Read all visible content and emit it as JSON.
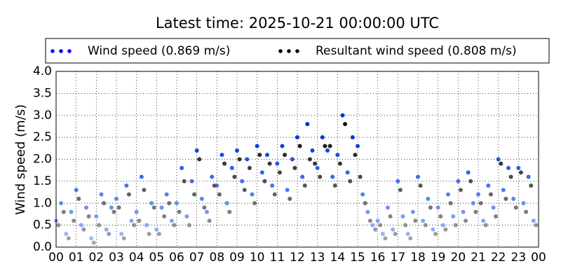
{
  "chart_data": {
    "type": "scatter",
    "title": "Latest time: 2025-10-21 00:00:00 UTC",
    "y_label": "Wind speed (m/s)",
    "xlim": [
      0,
      24
    ],
    "ylim": [
      0,
      4
    ],
    "xticks": [
      {
        "value": 0,
        "label": "00"
      },
      {
        "value": 1,
        "label": "01"
      },
      {
        "value": 2,
        "label": "02"
      },
      {
        "value": 3,
        "label": "03"
      },
      {
        "value": 4,
        "label": "04"
      },
      {
        "value": 5,
        "label": "05"
      },
      {
        "value": 6,
        "label": "06"
      },
      {
        "value": 7,
        "label": "07"
      },
      {
        "value": 8,
        "label": "08"
      },
      {
        "value": 9,
        "label": "09"
      },
      {
        "value": 10,
        "label": "10"
      },
      {
        "value": 11,
        "label": "11"
      },
      {
        "value": 12,
        "label": "12"
      },
      {
        "value": 13,
        "label": "13"
      },
      {
        "value": 14,
        "label": "14"
      },
      {
        "value": 15,
        "label": "15"
      },
      {
        "value": 16,
        "label": "16"
      },
      {
        "value": 17,
        "label": "17"
      },
      {
        "value": 18,
        "label": "18"
      },
      {
        "value": 19,
        "label": "19"
      },
      {
        "value": 20,
        "label": "20"
      },
      {
        "value": 21,
        "label": "21"
      },
      {
        "value": 22,
        "label": "22"
      },
      {
        "value": 23,
        "label": "23"
      },
      {
        "value": 24,
        "label": "00"
      }
    ],
    "yticks": [
      {
        "value": 0,
        "label": "0.0"
      },
      0.5,
      {
        "value": 1,
        "label": "1.0"
      },
      1.5,
      {
        "value": 2,
        "label": "2.0"
      },
      2.5,
      {
        "value": 3,
        "label": "3.0"
      },
      3.5,
      {
        "value": 4,
        "label": "4.0"
      }
    ],
    "grid": true,
    "series": [
      {
        "name": "Wind speed (0.869 m/s)",
        "color": "#0000ff",
        "color_low": "#a8c8ff",
        "color_high": "#0033dd",
        "x": [
          0,
          0.25,
          0.5,
          0.75,
          1,
          1.25,
          1.5,
          1.75,
          2,
          2.25,
          2.5,
          2.75,
          3,
          3.25,
          3.5,
          3.75,
          4,
          4.25,
          4.5,
          4.75,
          5,
          5.25,
          5.5,
          5.75,
          6,
          6.25,
          6.5,
          6.75,
          7,
          7.25,
          7.5,
          7.75,
          8,
          8.25,
          8.5,
          8.75,
          9,
          9.25,
          9.5,
          9.75,
          10,
          10.25,
          10.5,
          10.75,
          11,
          11.25,
          11.5,
          11.75,
          12,
          12.25,
          12.5,
          12.75,
          13,
          13.25,
          13.5,
          13.75,
          14,
          14.25,
          14.5,
          14.75,
          15,
          15.25,
          15.5,
          15.75,
          16,
          16.25,
          16.5,
          16.75,
          17,
          17.25,
          17.5,
          17.75,
          18,
          18.25,
          18.5,
          18.75,
          19,
          19.25,
          19.5,
          19.75,
          20,
          20.25,
          20.5,
          20.75,
          21,
          21.25,
          21.5,
          21.75,
          22,
          22.25,
          22.5,
          22.75,
          23,
          23.25,
          23.5,
          23.75
        ],
        "values": [
          0.6,
          1.0,
          0.3,
          0.8,
          1.3,
          0.5,
          0.9,
          0.2,
          0.7,
          1.2,
          0.4,
          0.9,
          1.1,
          0.3,
          1.4,
          0.6,
          0.8,
          1.6,
          0.5,
          1.0,
          0.4,
          0.9,
          1.2,
          0.6,
          1.0,
          1.8,
          0.7,
          1.5,
          2.2,
          1.1,
          0.8,
          1.6,
          1.4,
          2.1,
          1.0,
          1.8,
          2.2,
          1.5,
          2.0,
          1.2,
          2.3,
          1.7,
          2.1,
          1.4,
          1.9,
          2.3,
          1.3,
          2.0,
          2.5,
          1.6,
          2.8,
          2.2,
          1.8,
          2.5,
          2.2,
          1.6,
          2.1,
          3.0,
          1.7,
          2.5,
          2.3,
          1.2,
          0.8,
          0.5,
          0.6,
          0.3,
          0.9,
          0.4,
          1.5,
          0.7,
          0.3,
          0.8,
          1.6,
          0.6,
          1.1,
          0.4,
          0.9,
          0.5,
          1.2,
          0.7,
          1.5,
          0.8,
          1.7,
          1.0,
          1.2,
          0.6,
          1.4,
          0.9,
          2.0,
          1.3,
          1.8,
          1.1,
          1.8,
          1.0,
          1.6,
          0.6
        ]
      },
      {
        "name": "Resultant wind speed (0.808 m/s)",
        "color": "#000000",
        "color_low": "#b0b0b0",
        "color_high": "#111111",
        "x": [
          0.125,
          0.375,
          0.625,
          0.875,
          1.125,
          1.375,
          1.625,
          1.875,
          2.125,
          2.375,
          2.625,
          2.875,
          3.125,
          3.375,
          3.625,
          3.875,
          4.125,
          4.375,
          4.625,
          4.875,
          5.125,
          5.375,
          5.625,
          5.875,
          6.125,
          6.375,
          6.625,
          6.875,
          7.125,
          7.375,
          7.625,
          7.875,
          8.125,
          8.375,
          8.625,
          8.875,
          9.125,
          9.375,
          9.625,
          9.875,
          10.125,
          10.375,
          10.625,
          10.875,
          11.125,
          11.375,
          11.625,
          11.875,
          12.125,
          12.375,
          12.625,
          12.875,
          13.125,
          13.375,
          13.625,
          13.875,
          14.125,
          14.375,
          14.625,
          14.875,
          15.125,
          15.375,
          15.625,
          15.875,
          16.125,
          16.375,
          16.625,
          16.875,
          17.125,
          17.375,
          17.625,
          17.875,
          18.125,
          18.375,
          18.625,
          18.875,
          19.125,
          19.375,
          19.625,
          19.875,
          20.125,
          20.375,
          20.625,
          20.875,
          21.125,
          21.375,
          21.625,
          21.875,
          22.125,
          22.375,
          22.625,
          22.875,
          23.125,
          23.375,
          23.625,
          23.875
        ],
        "values": [
          0.5,
          0.8,
          0.2,
          0.6,
          1.1,
          0.4,
          0.7,
          0.1,
          0.5,
          1.0,
          0.3,
          0.8,
          0.9,
          0.2,
          1.2,
          0.5,
          0.6,
          1.3,
          0.3,
          0.9,
          0.3,
          0.7,
          1.0,
          0.5,
          0.8,
          1.5,
          0.5,
          1.2,
          2.0,
          0.9,
          0.6,
          1.4,
          1.2,
          1.9,
          0.8,
          1.6,
          2.0,
          1.3,
          1.8,
          1.0,
          2.1,
          1.5,
          1.9,
          1.2,
          1.7,
          2.1,
          1.1,
          1.8,
          2.3,
          1.4,
          2.0,
          1.9,
          1.6,
          2.3,
          2.3,
          1.4,
          1.9,
          2.8,
          1.5,
          2.1,
          1.6,
          1.0,
          0.6,
          0.4,
          0.5,
          0.2,
          0.7,
          0.3,
          1.3,
          0.5,
          0.2,
          0.6,
          1.4,
          0.5,
          0.9,
          0.3,
          0.7,
          0.4,
          1.0,
          0.5,
          1.3,
          0.6,
          1.5,
          0.8,
          1.0,
          0.5,
          1.2,
          0.7,
          1.9,
          1.1,
          1.6,
          0.9,
          1.7,
          0.8,
          1.4,
          0.5
        ]
      }
    ]
  }
}
